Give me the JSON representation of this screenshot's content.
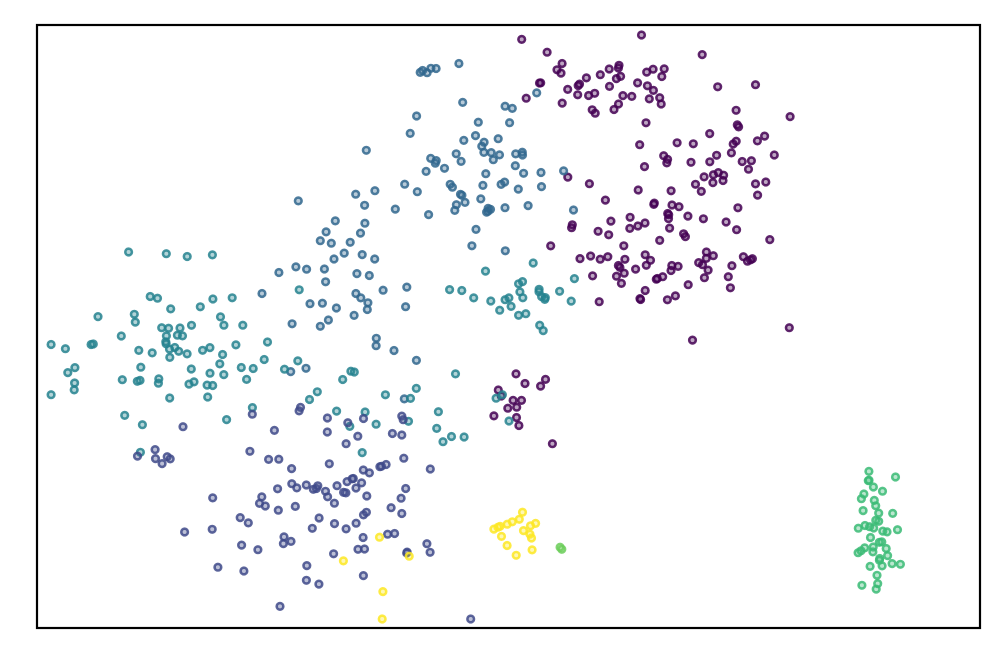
{
  "chart_data": {
    "type": "scatter",
    "title": "",
    "xlabel": "",
    "ylabel": "",
    "xticks": [],
    "yticks": [],
    "xlim": [
      0,
      1
    ],
    "ylim": [
      0,
      1
    ],
    "grid": false,
    "legend": "none",
    "palette": {
      "c0": "#440154",
      "c1": "#482677",
      "c2": "#3f4a8a",
      "c3": "#31678e",
      "c4": "#26838f",
      "c5": "#1f9d8a",
      "c6": "#6cce5a",
      "c7": "#3bbb75",
      "c8": "#fde725"
    },
    "clusters": [
      {
        "id": "c0",
        "n": 42,
        "center": [
          0.6,
          0.9
        ],
        "spread": [
          0.05,
          0.035
        ],
        "seed": 11
      },
      {
        "id": "c0",
        "n": 78,
        "center": [
          0.66,
          0.63
        ],
        "spread": [
          0.06,
          0.06
        ],
        "seed": 12
      },
      {
        "id": "c0",
        "n": 36,
        "center": [
          0.72,
          0.78
        ],
        "spread": [
          0.045,
          0.05
        ],
        "seed": 13
      },
      {
        "id": "c0",
        "n": 14,
        "center": [
          0.51,
          0.38
        ],
        "spread": [
          0.02,
          0.03
        ],
        "seed": 14
      },
      {
        "id": "c3",
        "n": 60,
        "center": [
          0.47,
          0.75
        ],
        "spread": [
          0.045,
          0.06
        ],
        "seed": 21
      },
      {
        "id": "c3",
        "n": 44,
        "center": [
          0.31,
          0.55
        ],
        "spread": [
          0.04,
          0.08
        ],
        "seed": 22
      },
      {
        "id": "c3",
        "n": 6,
        "center": [
          0.41,
          0.93
        ],
        "spread": [
          0.012,
          0.008
        ],
        "seed": 23
      },
      {
        "id": "c4",
        "n": 80,
        "center": [
          0.17,
          0.45
        ],
        "spread": [
          0.07,
          0.07
        ],
        "seed": 31
      },
      {
        "id": "c4",
        "n": 26,
        "center": [
          0.5,
          0.55
        ],
        "spread": [
          0.04,
          0.02
        ],
        "seed": 32
      },
      {
        "id": "c4",
        "n": 18,
        "center": [
          0.41,
          0.35
        ],
        "spread": [
          0.05,
          0.04
        ],
        "seed": 33
      },
      {
        "id": "c2",
        "n": 90,
        "center": [
          0.31,
          0.22
        ],
        "spread": [
          0.06,
          0.075
        ],
        "seed": 41
      },
      {
        "id": "c2",
        "n": 6,
        "center": [
          0.13,
          0.28
        ],
        "spread": [
          0.01,
          0.01
        ],
        "seed": 42
      },
      {
        "id": "c7",
        "n": 42,
        "center": [
          0.89,
          0.16
        ],
        "spread": [
          0.012,
          0.045
        ],
        "seed": 51
      },
      {
        "id": "c8",
        "n": 16,
        "center": [
          0.51,
          0.16
        ],
        "spread": [
          0.012,
          0.018
        ],
        "seed": 61
      },
      {
        "id": "c8",
        "n": 5,
        "center": [
          0.39,
          0.09
        ],
        "spread": [
          0.03,
          0.04
        ],
        "seed": 62
      },
      {
        "id": "c6",
        "n": 2,
        "center": [
          0.553,
          0.135
        ],
        "spread": [
          0.002,
          0.005
        ],
        "seed": 71
      }
    ]
  }
}
